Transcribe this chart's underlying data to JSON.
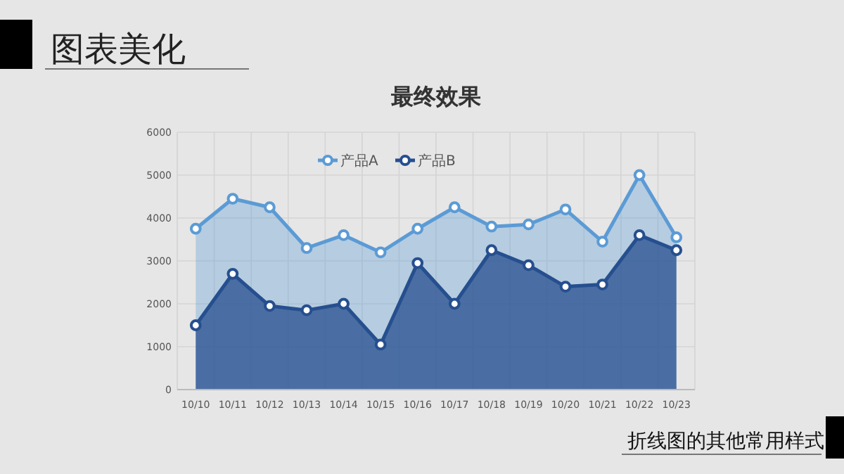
{
  "chart_data": {
    "type": "area",
    "title": "最终效果",
    "annotations": [
      "图表美化",
      "折线图的其他常用样式"
    ],
    "categories": [
      "10/10",
      "10/11",
      "10/12",
      "10/13",
      "10/14",
      "10/15",
      "10/16",
      "10/17",
      "10/18",
      "10/19",
      "10/20",
      "10/21",
      "10/22",
      "10/23"
    ],
    "series": [
      {
        "name": "产品A",
        "color": "#5b9bd5",
        "values": [
          3750,
          4450,
          4250,
          3300,
          3600,
          3200,
          3750,
          4250,
          3800,
          3850,
          4200,
          3450,
          5000,
          3550
        ]
      },
      {
        "name": "产品B",
        "color": "#264f8f",
        "values": [
          1500,
          2700,
          1950,
          1850,
          2000,
          1050,
          2950,
          2000,
          3250,
          2900,
          2400,
          2450,
          3600,
          3250
        ]
      }
    ],
    "ylim": [
      0,
      6000
    ],
    "yticks": [
      0,
      1000,
      2000,
      3000,
      4000,
      5000,
      6000
    ],
    "grid": true,
    "legend": "top",
    "marker": "circle"
  }
}
